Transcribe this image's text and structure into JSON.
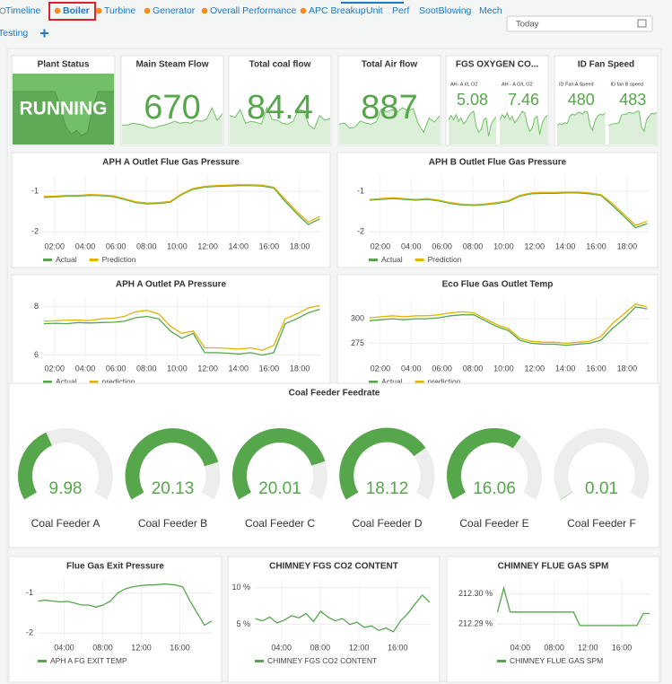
{
  "tabs": [
    "Timeline",
    "Boiler",
    "Turbine",
    "Generator",
    "Overall Performance",
    "APC Breakup",
    "Unit",
    "Perf",
    "SootBlowing",
    "Mech",
    "Testing"
  ],
  "date_picker": "Today",
  "stats": [
    {
      "title": "Plant Status",
      "value": "RUNNING",
      "sparkline": [
        3,
        3,
        3,
        3,
        3,
        3,
        3,
        3,
        3,
        2,
        1,
        0.6,
        0.8,
        0.5,
        0.7,
        2,
        3,
        3,
        3,
        3
      ]
    },
    {
      "title": "Main Steam Flow",
      "value": 670,
      "sparkline": [
        2,
        2,
        2.2,
        2.1,
        2,
        1.8,
        1.7,
        1.9,
        2,
        2.2,
        2.4,
        2.2,
        2.3,
        2.2,
        2.5,
        2.4,
        2.6,
        3.8,
        2.5,
        3.2
      ]
    },
    {
      "title": "Total coal flow",
      "value": 84.4,
      "sparkline": [
        3,
        2.8,
        3.6,
        2.2,
        2.4,
        2.3,
        2.1,
        3.8,
        2.6,
        2.5,
        2.2,
        2.1,
        2.4,
        3.6,
        3.5,
        2.0,
        1.6,
        3.0,
        2.5,
        2.7
      ]
    },
    {
      "title": "Total Air flow",
      "value": 887,
      "sparkline": [
        2,
        2.1,
        1.6,
        1.7,
        2.3,
        2.1,
        2.0,
        2.2,
        3.5,
        3.2,
        3.4,
        3.2,
        3.6,
        3.3,
        3.5,
        2.0,
        1.2,
        2.6,
        2.2,
        2.8
      ]
    },
    {
      "title": "FGS OXYGEN CO...",
      "items": [
        {
          "label": "AH- A I/L O2",
          "value": 5.08,
          "sparkline": [
            3,
            3.5,
            3,
            3.6,
            2.8,
            3.2,
            2.5,
            2.8,
            3.4,
            3.8,
            4,
            2.2,
            1.5,
            1.8,
            3,
            3.2,
            1,
            2.4,
            3,
            3.3
          ]
        },
        {
          "label": "AH - A O/L O2",
          "value": 7.46,
          "sparkline": [
            3,
            3.6,
            3.2,
            3.8,
            3,
            3.4,
            2.6,
            3,
            3.5,
            4,
            3.8,
            2.4,
            1.6,
            2,
            3.2,
            3.4,
            1.2,
            2.6,
            3.2,
            3.5
          ]
        }
      ]
    },
    {
      "title": "ID Fan Speed",
      "items": [
        {
          "label": "ID Fan A Speed",
          "value": 480,
          "sparkline": [
            2,
            2.2,
            2.1,
            2.3,
            2.2,
            3,
            3.2,
            3.1,
            3.3,
            3.4,
            3.2,
            3.5,
            3.4,
            2.0,
            1.5,
            2.5,
            3.0,
            3.2,
            3.1,
            3.3
          ]
        },
        {
          "label": "ID fan B speed",
          "value": 483,
          "sparkline": [
            2,
            2.1,
            2.2,
            2.2,
            2.3,
            3.1,
            3.2,
            3.2,
            3.4,
            3.3,
            3.3,
            3.5,
            3.5,
            1.8,
            1.4,
            2.6,
            3.0,
            3.3,
            3.2,
            3.4
          ]
        }
      ]
    }
  ],
  "chart_data": [
    {
      "type": "line",
      "title": "APH A Outlet Flue Gas Pressure",
      "x": [
        1.3,
        2.05,
        2.8,
        3.55,
        4.3,
        5.05,
        5.8,
        6.55,
        7.3,
        8.05,
        8.8,
        9.55,
        10.3,
        11.05,
        11.8,
        12.55,
        13.3,
        14.05,
        14.8,
        15.55,
        16.3,
        17.05,
        17.8,
        18.55,
        19.3
      ],
      "xlim": [
        1.25,
        19.4
      ],
      "xticks": [
        {
          "value": 2,
          "label": "02:00"
        },
        {
          "value": 4,
          "label": "04:00"
        },
        {
          "value": 6,
          "label": "06:00"
        },
        {
          "value": 8,
          "label": "08:00"
        },
        {
          "value": 10,
          "label": "10:00"
        },
        {
          "value": 12,
          "label": "12:00"
        },
        {
          "value": 14,
          "label": "14:00"
        },
        {
          "value": 16,
          "label": "16:00"
        },
        {
          "value": 18,
          "label": "18:00"
        }
      ],
      "ylim": [
        -2.15,
        -0.6
      ],
      "yticks": [
        -1,
        -2
      ],
      "grid": true,
      "series": [
        {
          "name": "Actual",
          "color": "#56a64b",
          "values": [
            -1.15,
            -1.14,
            -1.12,
            -1.12,
            -1.1,
            -1.11,
            -1.13,
            -1.2,
            -1.28,
            -1.31,
            -1.3,
            -1.27,
            -1.08,
            -0.95,
            -0.9,
            -0.88,
            -0.87,
            -0.86,
            -0.86,
            -0.87,
            -0.92,
            -1.25,
            -1.55,
            -1.82,
            -1.68
          ]
        },
        {
          "name": "Prediction",
          "color": "#e0b400",
          "values": [
            -1.13,
            -1.12,
            -1.1,
            -1.1,
            -1.08,
            -1.09,
            -1.11,
            -1.18,
            -1.26,
            -1.29,
            -1.28,
            -1.25,
            -1.06,
            -0.93,
            -0.88,
            -0.86,
            -0.85,
            -0.84,
            -0.84,
            -0.85,
            -0.9,
            -1.2,
            -1.5,
            -1.76,
            -1.62
          ]
        }
      ]
    },
    {
      "type": "line",
      "title": "APH B Outlet Flue Gas Pressure",
      "x": [
        1.3,
        2.05,
        2.8,
        3.55,
        4.3,
        5.05,
        5.8,
        6.55,
        7.3,
        8.05,
        8.8,
        9.55,
        10.3,
        11.05,
        11.8,
        12.55,
        13.3,
        14.05,
        14.8,
        15.55,
        16.3,
        17.05,
        17.8,
        18.55,
        19.3
      ],
      "xlim": [
        1.25,
        19.4
      ],
      "xticks": [
        {
          "value": 2,
          "label": "02:00"
        },
        {
          "value": 4,
          "label": "04:00"
        },
        {
          "value": 6,
          "label": "06:00"
        },
        {
          "value": 8,
          "label": "08:00"
        },
        {
          "value": 10,
          "label": "10:00"
        },
        {
          "value": 12,
          "label": "12:00"
        },
        {
          "value": 14,
          "label": "14:00"
        },
        {
          "value": 16,
          "label": "16:00"
        },
        {
          "value": 18,
          "label": "18:00"
        }
      ],
      "ylim": [
        -2.15,
        -0.6
      ],
      "yticks": [
        -1,
        -2
      ],
      "grid": true,
      "series": [
        {
          "name": "Actual",
          "color": "#56a64b",
          "values": [
            -1.22,
            -1.2,
            -1.18,
            -1.2,
            -1.22,
            -1.2,
            -1.24,
            -1.3,
            -1.34,
            -1.35,
            -1.33,
            -1.3,
            -1.25,
            -1.12,
            -1.06,
            -1.05,
            -1.05,
            -1.04,
            -1.04,
            -1.06,
            -1.1,
            -1.35,
            -1.62,
            -1.9,
            -1.8
          ]
        },
        {
          "name": "Prediction",
          "color": "#e0b400",
          "values": [
            -1.2,
            -1.18,
            -1.16,
            -1.18,
            -1.2,
            -1.18,
            -1.22,
            -1.28,
            -1.32,
            -1.33,
            -1.31,
            -1.28,
            -1.23,
            -1.1,
            -1.04,
            -1.03,
            -1.03,
            -1.02,
            -1.02,
            -1.04,
            -1.08,
            -1.3,
            -1.57,
            -1.84,
            -1.74
          ]
        }
      ]
    },
    {
      "type": "line",
      "title": "APH A Outlet PA Pressure",
      "x": [
        1.3,
        2.05,
        2.8,
        3.55,
        4.3,
        5.05,
        5.8,
        6.55,
        7.3,
        8.05,
        8.8,
        9.55,
        10.3,
        11.05,
        11.8,
        12.55,
        13.3,
        14.05,
        14.8,
        15.55,
        16.3,
        17.05,
        17.8,
        18.55,
        19.3
      ],
      "xlim": [
        1.25,
        19.4
      ],
      "xticks": [
        {
          "value": 2,
          "label": "02:00"
        },
        {
          "value": 4,
          "label": "04:00"
        },
        {
          "value": 6,
          "label": "06:00"
        },
        {
          "value": 8,
          "label": "08:00"
        },
        {
          "value": 10,
          "label": "10:00"
        },
        {
          "value": 12,
          "label": "12:00"
        },
        {
          "value": 14,
          "label": "14:00"
        },
        {
          "value": 16,
          "label": "16:00"
        },
        {
          "value": 18,
          "label": "18:00"
        }
      ],
      "ylim": [
        5.8,
        8.4
      ],
      "yticks": [
        6,
        8
      ],
      "grid": true,
      "series": [
        {
          "name": "Actual",
          "color": "#56a64b",
          "values": [
            7.3,
            7.32,
            7.3,
            7.35,
            7.33,
            7.35,
            7.36,
            7.4,
            7.55,
            7.6,
            7.5,
            7.0,
            6.7,
            6.9,
            6.1,
            6.1,
            6.08,
            6.05,
            6.1,
            6.0,
            6.1,
            7.3,
            7.5,
            7.75,
            7.9
          ]
        },
        {
          "name": "prediction",
          "color": "#e0b400",
          "values": [
            7.4,
            7.42,
            7.45,
            7.45,
            7.43,
            7.5,
            7.52,
            7.6,
            7.8,
            7.85,
            7.7,
            7.2,
            6.9,
            7.0,
            6.3,
            6.3,
            6.28,
            6.25,
            6.3,
            6.2,
            6.4,
            7.5,
            7.7,
            7.95,
            8.05
          ]
        }
      ]
    },
    {
      "type": "line",
      "title": "Eco Flue Gas Outlet Temp",
      "x": [
        1.3,
        2.05,
        2.8,
        3.55,
        4.3,
        5.05,
        5.8,
        6.55,
        7.3,
        8.05,
        8.8,
        9.55,
        10.3,
        11.05,
        11.8,
        12.55,
        13.3,
        14.05,
        14.8,
        15.55,
        16.3,
        17.05,
        17.8,
        18.55,
        19.3
      ],
      "xlim": [
        1.25,
        19.4
      ],
      "xticks": [
        {
          "value": 2,
          "label": "02:00"
        },
        {
          "value": 4,
          "label": "04:00"
        },
        {
          "value": 6,
          "label": "06:00"
        },
        {
          "value": 8,
          "label": "08:00"
        },
        {
          "value": 10,
          "label": "10:00"
        },
        {
          "value": 12,
          "label": "12:00"
        },
        {
          "value": 14,
          "label": "14:00"
        },
        {
          "value": 16,
          "label": "16:00"
        },
        {
          "value": 18,
          "label": "18:00"
        }
      ],
      "ylim": [
        258,
        322
      ],
      "yticks": [
        275,
        300
      ],
      "grid": true,
      "series": [
        {
          "name": "Actual",
          "color": "#56a64b",
          "values": [
            298,
            299,
            300,
            299,
            300,
            300,
            301,
            303,
            304,
            304,
            298,
            292,
            288,
            278,
            275,
            274,
            274,
            273,
            274,
            275,
            278,
            290,
            300,
            312,
            310
          ]
        },
        {
          "name": "prediction",
          "color": "#e0b400",
          "values": [
            301,
            302,
            303,
            302,
            303,
            303,
            304,
            306,
            307,
            306,
            300,
            294,
            290,
            280,
            277,
            276,
            276,
            275,
            276,
            277,
            282,
            295,
            305,
            315,
            312
          ]
        }
      ]
    },
    {
      "type": "gauge",
      "title": "Coal Feeder Feedrate",
      "min": 0,
      "max": 25,
      "color": "#56a64b",
      "categories": [
        "Coal Feeder A",
        "Coal Feeder B",
        "Coal Feeder C",
        "Coal Feeder D",
        "Coal Feeder E",
        "Coal Feeder F"
      ],
      "values": [
        9.98,
        20.13,
        20.01,
        18.12,
        16.06,
        0.01
      ]
    },
    {
      "type": "line",
      "title": "Flue Gas Exit Pressure",
      "x": [
        1.3,
        2.05,
        2.8,
        3.55,
        4.3,
        5.05,
        5.8,
        6.55,
        7.3,
        8.05,
        8.8,
        9.55,
        10.3,
        11.05,
        11.8,
        12.55,
        13.3,
        14.05,
        14.8,
        15.55,
        16.3,
        17.05,
        17.8,
        18.55,
        19.3
      ],
      "xlim": [
        1.25,
        19.4
      ],
      "xticks": [
        {
          "value": 4,
          "label": "04:00"
        },
        {
          "value": 8,
          "label": "08:00"
        },
        {
          "value": 12,
          "label": "12:00"
        },
        {
          "value": 16,
          "label": "16:00"
        }
      ],
      "ylim": [
        -2.15,
        -0.65
      ],
      "yticks": [
        -1,
        -2
      ],
      "grid": true,
      "series": [
        {
          "name": "APH A FG EXIT TEMP",
          "color": "#56a64b",
          "values": [
            -1.2,
            -1.18,
            -1.2,
            -1.22,
            -1.21,
            -1.25,
            -1.3,
            -1.3,
            -1.35,
            -1.3,
            -1.2,
            -1.0,
            -0.9,
            -0.85,
            -0.82,
            -0.8,
            -0.8,
            -0.78,
            -0.78,
            -0.8,
            -0.85,
            -1.2,
            -1.5,
            -1.8,
            -1.7
          ]
        }
      ]
    },
    {
      "type": "line",
      "title": "CHIMNEY FGS CO2 CONTENT",
      "x": [
        1.3,
        2.05,
        2.8,
        3.55,
        4.3,
        5.05,
        5.8,
        6.55,
        7.3,
        8.05,
        8.8,
        9.55,
        10.3,
        11.05,
        11.8,
        12.55,
        13.3,
        14.05,
        14.8,
        15.55,
        16.3,
        17.05,
        17.8,
        18.55,
        19.3
      ],
      "xlim": [
        1.25,
        19.4
      ],
      "xticks": [
        {
          "value": 4,
          "label": "04:00"
        },
        {
          "value": 8,
          "label": "08:00"
        },
        {
          "value": 12,
          "label": "12:00"
        },
        {
          "value": 16,
          "label": "16:00"
        }
      ],
      "ylim": [
        3,
        11.2
      ],
      "yticks": [
        {
          "value": 5,
          "label": "5 %"
        },
        {
          "value": 10,
          "label": "10 %"
        }
      ],
      "grid": true,
      "series": [
        {
          "name": "CHIMNEY FGS CO2 CONTENT",
          "color": "#56a64b",
          "values": [
            5.8,
            5.5,
            6.0,
            5.2,
            5.6,
            6.2,
            5.9,
            6.5,
            5.4,
            6.8,
            6.0,
            5.5,
            5.8,
            5.0,
            5.3,
            4.6,
            4.8,
            4.2,
            4.5,
            4.0,
            5.5,
            6.5,
            7.8,
            9.0,
            8.0
          ]
        }
      ]
    },
    {
      "type": "line",
      "title": "CHIMNEY FLUE GAS SPM",
      "x": [
        1.3,
        2.05,
        2.8,
        3.55,
        4.3,
        5.05,
        5.8,
        6.55,
        7.3,
        8.05,
        8.8,
        9.55,
        10.3,
        11.05,
        11.8,
        12.55,
        13.3,
        14.05,
        14.8,
        15.55,
        16.3,
        17.05,
        17.8,
        18.55,
        19.3
      ],
      "xlim": [
        1.25,
        19.4
      ],
      "xticks": [
        {
          "value": 4,
          "label": "04:00"
        },
        {
          "value": 8,
          "label": "08:00"
        },
        {
          "value": 12,
          "label": "12:00"
        },
        {
          "value": 16,
          "label": "16:00"
        }
      ],
      "ylim": [
        212.285,
        212.305
      ],
      "yticks": [
        {
          "value": 212.29,
          "label": "212.29 %"
        },
        {
          "value": 212.3,
          "label": "212.30 %"
        }
      ],
      "grid": true,
      "series": [
        {
          "name": "CHIMNEY FLUE GAS SPM",
          "color": "#56a64b",
          "values": [
            212.294,
            212.302,
            212.294,
            212.294,
            212.294,
            212.294,
            212.294,
            212.294,
            212.294,
            212.294,
            212.294,
            212.294,
            212.294,
            212.2895,
            212.2895,
            212.2895,
            212.2895,
            212.2895,
            212.2895,
            212.2895,
            212.2895,
            212.2895,
            212.2895,
            212.2935,
            212.2935
          ]
        }
      ]
    }
  ]
}
